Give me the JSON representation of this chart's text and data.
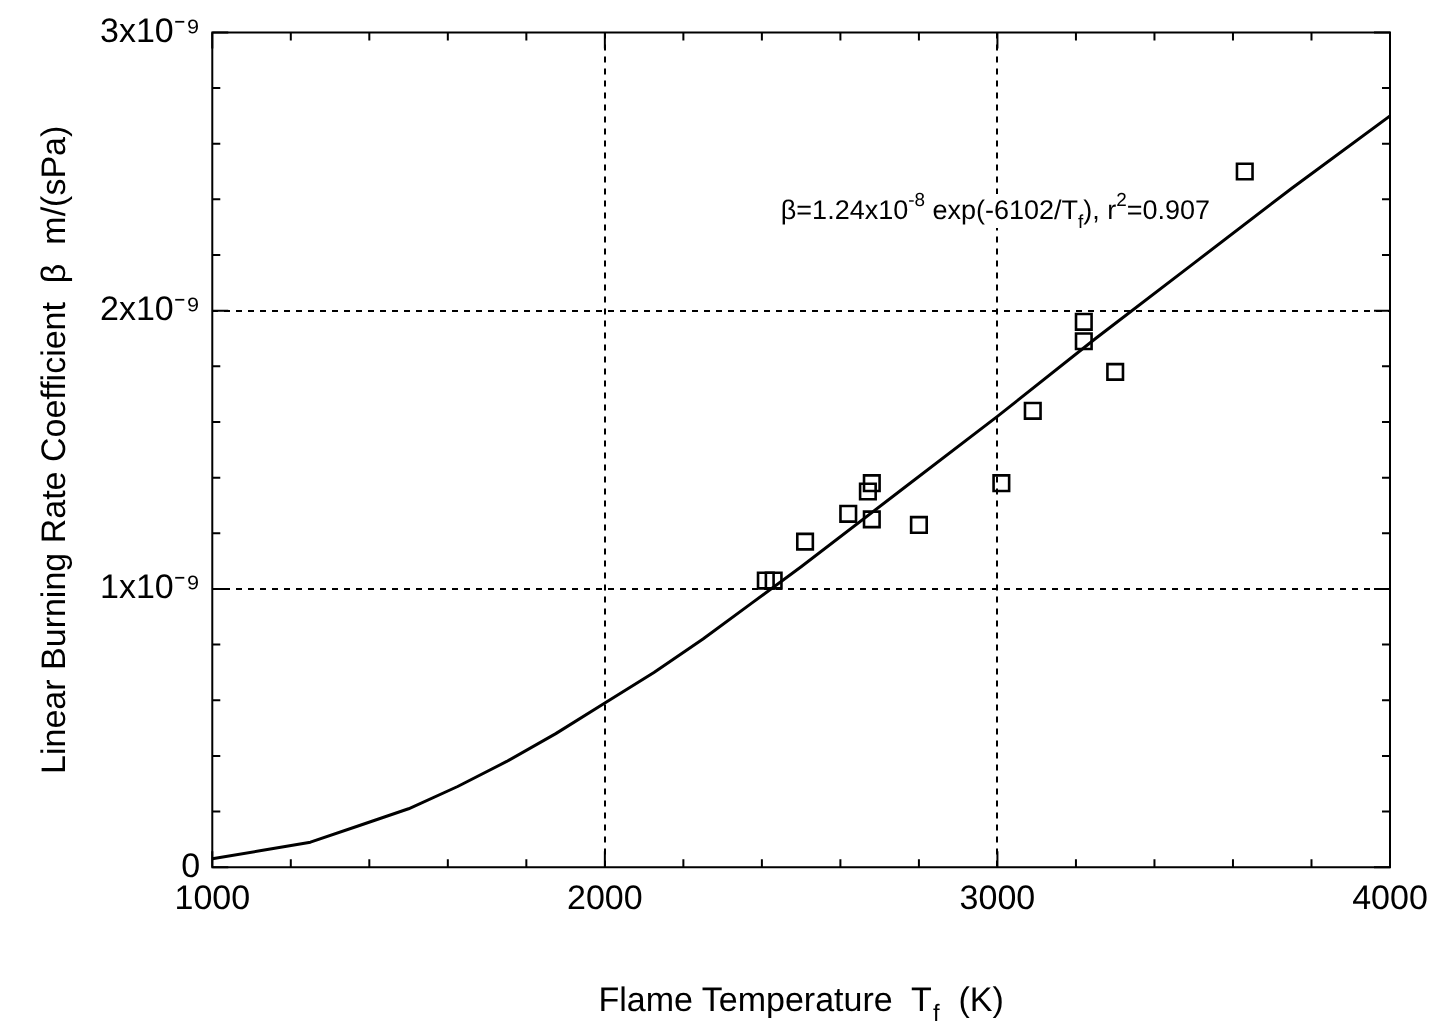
{
  "chart_data": {
    "type": "scatter",
    "xlabel": "Flame Temperature  T$_{f}$  (K)",
    "ylabel": "Linear Burning Rate Coefficient  β  m/(sPa)",
    "annotations": [
      "β=1.24x10$^{-8}$ exp(-6102/T$_{f}$), r$^{2}$=0.907"
    ],
    "xlim": [
      1000,
      4000
    ],
    "ylim": [
      0,
      3e-09
    ],
    "xticks": [
      1000,
      {
        "value": 1200,
        "label": null
      },
      {
        "value": 1400,
        "label": null
      },
      {
        "value": 1600,
        "label": null
      },
      {
        "value": 1800,
        "label": null
      },
      2000,
      {
        "value": 2200,
        "label": null
      },
      {
        "value": 2400,
        "label": null
      },
      {
        "value": 2600,
        "label": null
      },
      {
        "value": 2800,
        "label": null
      },
      3000,
      {
        "value": 3200,
        "label": null
      },
      {
        "value": 3400,
        "label": null
      },
      {
        "value": 3600,
        "label": null
      },
      {
        "value": 3800,
        "label": null
      },
      4000
    ],
    "yticks": [
      0,
      {
        "value": 2e-10,
        "label": null
      },
      {
        "value": 4e-10,
        "label": null
      },
      {
        "value": 6e-10,
        "label": null
      },
      {
        "value": 8e-10,
        "label": null
      },
      {
        "value": 1e-09,
        "label": "1x10⁻⁹"
      },
      {
        "value": 1.2e-09,
        "label": null
      },
      {
        "value": 1.4e-09,
        "label": null
      },
      {
        "value": 1.6e-09,
        "label": null
      },
      {
        "value": 1.8e-09,
        "label": null
      },
      {
        "value": 2e-09,
        "label": "2x10⁻⁹"
      },
      {
        "value": 2.2e-09,
        "label": null
      },
      {
        "value": 2.4e-09,
        "label": null
      },
      {
        "value": 2.6e-09,
        "label": null
      },
      {
        "value": 2.8e-09,
        "label": null
      },
      {
        "value": 3e-09,
        "label": "3x10⁻⁹"
      }
    ],
    "grid": true,
    "legend": false,
    "marker": "square",
    "series": [
      {
        "type": "scatter",
        "color": "#000000",
        "x": [
          2410,
          2430,
          2510,
          2620,
          2670,
          2680,
          2680,
          2800,
          3010,
          3090,
          3220,
          3220,
          3300,
          3630
        ],
        "values": [
          1.03e-09,
          1.03e-09,
          1.17e-09,
          1.27e-09,
          1.35e-09,
          1.38e-09,
          1.25e-09,
          1.23e-09,
          1.38e-09,
          1.64e-09,
          1.96e-09,
          1.89e-09,
          1.78e-09,
          2.5e-09
        ]
      },
      {
        "type": "line",
        "color": "#000000",
        "marker": "none",
        "x": [
          1000,
          1125,
          1250,
          1375,
          1500,
          1625,
          1750,
          1875,
          2000,
          2125,
          2250,
          2375,
          2500,
          2750,
          3000,
          3250,
          3500,
          3750,
          4000
        ],
        "values": [
          3e-11,
          6e-11,
          9e-11,
          1.5e-10,
          2.1e-10,
          2.9e-10,
          3.8e-10,
          4.8e-10,
          5.9e-10,
          7e-10,
          8.2e-10,
          9.5e-10,
          1.08e-09,
          1.35e-09,
          1.62e-09,
          1.9e-09,
          2.17e-09,
          2.44e-09,
          2.7e-09
        ]
      }
    ]
  }
}
